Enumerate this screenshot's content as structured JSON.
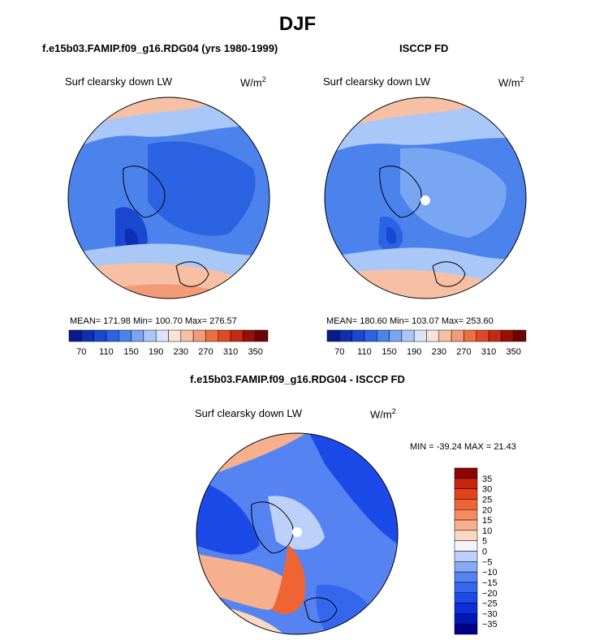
{
  "season": "DJF",
  "panels": [
    {
      "title": "f.e15b03.FAMIP.f09_g16.RDG04 (yrs 1980-1999)",
      "variable": "Surf clearsky down LW",
      "units": "W/m",
      "units_exp": "2",
      "stats": "MEAN= 171.98  Min= 100.70  Max= 276.57",
      "colorbar_ticks": [
        "70",
        "110",
        "150",
        "190",
        "230",
        "270",
        "310",
        "350"
      ]
    },
    {
      "title": "ISCCP FD",
      "variable": "Surf clearsky down LW",
      "units": "W/m",
      "units_exp": "2",
      "stats": "MEAN= 180.60  Min= 103.07  Max= 253.60",
      "colorbar_ticks": [
        "70",
        "110",
        "150",
        "190",
        "230",
        "270",
        "310",
        "350"
      ]
    },
    {
      "title": "f.e15b03.FAMIP.f09_g16.RDG04 - ISCCP FD",
      "variable": "Surf clearsky down LW",
      "units": "W/m",
      "units_exp": "2",
      "stats": "MIN = -39.24 MAX =  21.43",
      "colorbar_ticks": [
        "35",
        "30",
        "25",
        "20",
        "15",
        "10",
        "5",
        "0",
        "−5",
        "−10",
        "−15",
        "−20",
        "−25",
        "−30",
        "−35"
      ]
    }
  ],
  "colors": {
    "abs_scale": [
      "#081a8c",
      "#0e2fb4",
      "#1a48d2",
      "#2c63e2",
      "#4b82ec",
      "#78a6f2",
      "#a9c7f7",
      "#d8e6fb",
      "#fbe4d6",
      "#f7c0a4",
      "#f39a77",
      "#ed6f45",
      "#e04a22",
      "#c42a14",
      "#9a0e08",
      "#6e0505"
    ],
    "diff_scale": [
      "#00008a",
      "#0018b8",
      "#0a2fdb",
      "#1c4ae8",
      "#3566ee",
      "#5683f2",
      "#86aaf5",
      "#bcd1f9",
      "#f4f4ff",
      "#fbd8c4",
      "#f7b08e",
      "#f38a60",
      "#ee6435",
      "#e2431b",
      "#c6240d",
      "#8e0303"
    ]
  },
  "chart_data": [
    {
      "type": "heatmap",
      "projection": "polar stereographic (North Pole)",
      "title": "f.e15b03.FAMIP.f09_g16.RDG04 (yrs 1980-1999)",
      "subtitle": "Surf clearsky down LW",
      "units": "W/m2",
      "mean": 171.98,
      "min": 100.7,
      "max": 276.57,
      "colorbar_levels": [
        70,
        110,
        150,
        190,
        230,
        270,
        310,
        350
      ]
    },
    {
      "type": "heatmap",
      "projection": "polar stereographic (North Pole)",
      "title": "ISCCP FD",
      "subtitle": "Surf clearsky down LW",
      "units": "W/m2",
      "mean": 180.6,
      "min": 103.07,
      "max": 253.6,
      "colorbar_levels": [
        70,
        110,
        150,
        190,
        230,
        270,
        310,
        350
      ]
    },
    {
      "type": "heatmap",
      "projection": "polar stereographic (North Pole)",
      "title": "f.e15b03.FAMIP.f09_g16.RDG04 - ISCCP FD",
      "subtitle": "Surf clearsky down LW",
      "units": "W/m2",
      "min": -39.24,
      "max": 21.43,
      "colorbar_levels": [
        -35,
        -30,
        -25,
        -20,
        -15,
        -10,
        -5,
        0,
        5,
        10,
        15,
        20,
        25,
        30,
        35
      ]
    }
  ]
}
